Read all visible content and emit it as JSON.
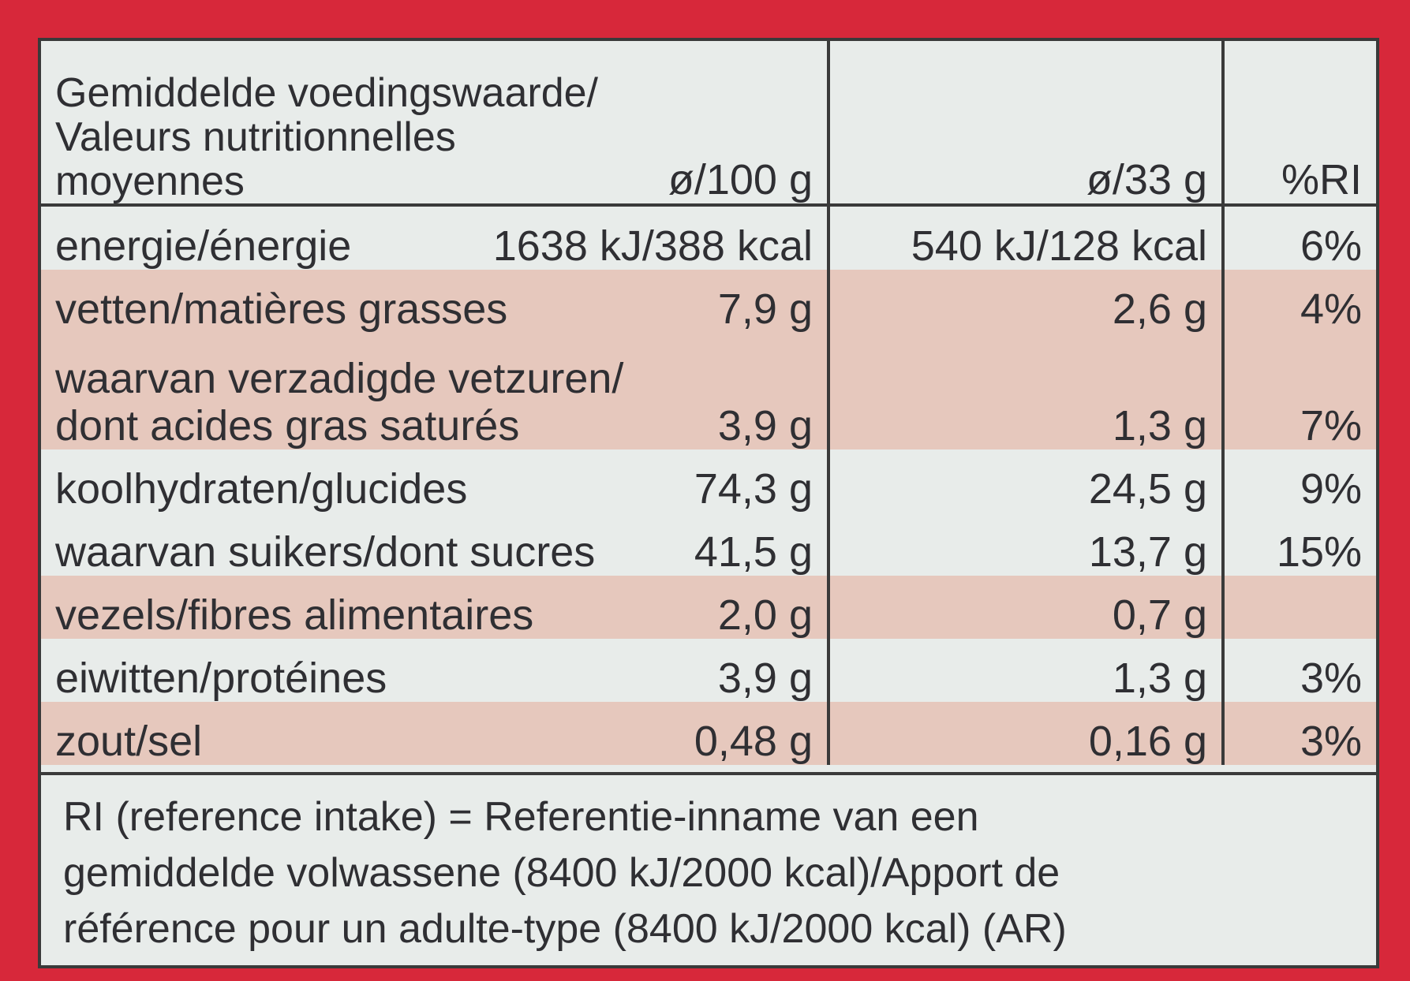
{
  "header": {
    "title_line1": "Gemiddelde voedingswaarde/",
    "title_line2": "Valeurs nutritionnelles",
    "title_line3": "moyennes",
    "per_100g": "ø/100 g",
    "per_portion": "ø/33 g",
    "ri": "%RI"
  },
  "rows": [
    {
      "label": "energie/énergie",
      "per_100g": "1638 kJ/388 kcal",
      "per_portion": "540 kJ/128 kcal",
      "ri": "6%"
    },
    {
      "label": "vetten/matières grasses",
      "per_100g": "7,9 g",
      "per_portion": "2,6 g",
      "ri": "4%"
    },
    {
      "label_line1": "waarvan verzadigde vetzuren/",
      "label_line2": "dont acides gras saturés",
      "per_100g": "3,9 g",
      "per_portion": "1,3 g",
      "ri": "7%"
    },
    {
      "label": "koolhydraten/glucides",
      "per_100g": "74,3 g",
      "per_portion": "24,5 g",
      "ri": "9%"
    },
    {
      "label": "waarvan suikers/dont sucres",
      "per_100g": "41,5 g",
      "per_portion": "13,7 g",
      "ri": "15%"
    },
    {
      "label": "vezels/fibres alimentaires",
      "per_100g": "2,0 g",
      "per_portion": "0,7 g",
      "ri": ""
    },
    {
      "label": "eiwitten/protéines",
      "per_100g": "3,9 g",
      "per_portion": "1,3 g",
      "ri": "3%"
    },
    {
      "label": "zout/sel",
      "per_100g": "0,48 g",
      "per_portion": "0,16 g",
      "ri": "3%"
    }
  ],
  "footnote": {
    "line1": "RI (reference intake) = Referentie-inname van een",
    "line2": "gemiddelde volwassene (8400 kJ/2000 kcal)/Apport de",
    "line3": "référence pour un adulte-type (8400 kJ/2000 kcal) (AR)"
  },
  "colors": {
    "packaging_red": "#d7283a",
    "label_background": "#e8ecea",
    "shaded_row": "#e6c8bd",
    "text": "#2f2f33"
  }
}
